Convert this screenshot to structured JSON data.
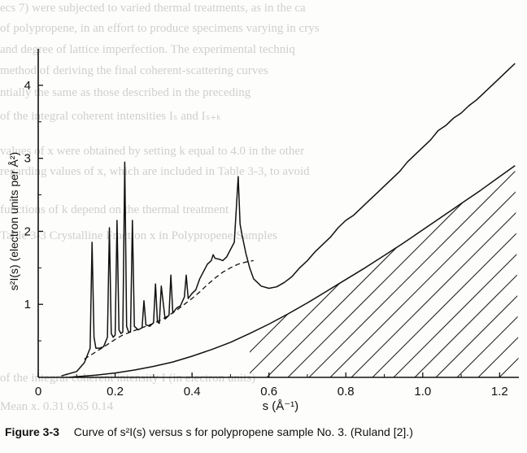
{
  "chart_data": {
    "type": "line",
    "xlabel": "s (Å⁻¹)",
    "ylabel": "s²I(s) (electron units per Å²)",
    "xlim": [
      0,
      1.25
    ],
    "ylim": [
      0,
      4.5
    ],
    "x_ticks": [
      "0",
      "0.2",
      "0.4",
      "0.6",
      "0.8",
      "1.0",
      "1.2"
    ],
    "y_ticks": [
      "1",
      "2",
      "3",
      "4"
    ],
    "hatched_region": "between lower curve and x-axis from s≈0.55 to 1.25",
    "series": [
      {
        "style": "solid",
        "x": [
          0.06,
          0.1,
          0.12,
          0.135,
          0.14,
          0.145,
          0.15,
          0.16,
          0.17,
          0.18,
          0.185,
          0.19,
          0.195,
          0.2,
          0.205,
          0.21,
          0.215,
          0.22,
          0.225,
          0.23,
          0.235,
          0.24,
          0.245,
          0.25,
          0.26,
          0.27,
          0.275,
          0.28,
          0.29,
          0.3,
          0.305,
          0.31,
          0.315,
          0.32,
          0.33,
          0.34,
          0.345,
          0.35,
          0.36,
          0.37,
          0.38,
          0.385,
          0.39,
          0.4,
          0.41,
          0.42,
          0.43,
          0.44,
          0.45,
          0.455,
          0.46,
          0.47,
          0.48,
          0.49,
          0.5,
          0.51,
          0.515,
          0.52,
          0.525,
          0.53,
          0.54,
          0.55,
          0.56,
          0.58,
          0.6,
          0.62,
          0.64,
          0.66,
          0.68,
          0.7,
          0.72,
          0.74,
          0.76,
          0.78,
          0.8,
          0.82,
          0.84,
          0.86,
          0.88,
          0.9,
          0.92,
          0.94,
          0.96,
          0.98,
          1.0,
          1.02,
          1.04,
          1.06,
          1.08,
          1.1,
          1.12,
          1.14,
          1.16,
          1.18,
          1.2,
          1.22,
          1.24
        ],
        "y": [
          0.02,
          0.08,
          0.2,
          0.4,
          1.85,
          0.55,
          0.4,
          0.4,
          0.42,
          0.55,
          2.05,
          0.6,
          0.55,
          0.58,
          2.15,
          0.65,
          0.6,
          0.62,
          2.95,
          0.7,
          0.62,
          0.62,
          2.15,
          0.7,
          0.65,
          0.68,
          1.05,
          0.72,
          0.7,
          0.75,
          1.28,
          0.76,
          0.74,
          1.25,
          0.8,
          0.85,
          1.4,
          0.88,
          0.95,
          0.98,
          1.1,
          1.4,
          1.08,
          1.15,
          1.2,
          1.35,
          1.45,
          1.55,
          1.6,
          1.68,
          1.63,
          1.62,
          1.6,
          1.65,
          1.75,
          1.85,
          2.3,
          2.75,
          2.1,
          1.95,
          1.7,
          1.5,
          1.35,
          1.25,
          1.22,
          1.24,
          1.3,
          1.38,
          1.5,
          1.6,
          1.72,
          1.82,
          1.92,
          2.05,
          2.15,
          2.22,
          2.32,
          2.42,
          2.52,
          2.62,
          2.72,
          2.82,
          2.95,
          3.05,
          3.15,
          3.25,
          3.38,
          3.45,
          3.55,
          3.62,
          3.72,
          3.8,
          3.9,
          4.0,
          4.1,
          4.2,
          4.3
        ]
      },
      {
        "style": "dashed",
        "x": [
          0.12,
          0.15,
          0.18,
          0.2,
          0.22,
          0.24,
          0.26,
          0.28,
          0.3,
          0.32,
          0.34,
          0.36,
          0.38,
          0.4,
          0.42,
          0.44,
          0.46,
          0.48,
          0.5,
          0.52,
          0.54,
          0.56
        ],
        "y": [
          0.25,
          0.35,
          0.45,
          0.52,
          0.58,
          0.62,
          0.66,
          0.7,
          0.74,
          0.79,
          0.85,
          0.92,
          1.0,
          1.08,
          1.17,
          1.27,
          1.36,
          1.44,
          1.5,
          1.55,
          1.58,
          1.6
        ]
      },
      {
        "style": "solid",
        "x": [
          0.08,
          0.1,
          0.15,
          0.2,
          0.25,
          0.3,
          0.35,
          0.4,
          0.45,
          0.5,
          0.55,
          0.6,
          0.65,
          0.7,
          0.75,
          0.8,
          0.85,
          0.9,
          0.95,
          1.0,
          1.05,
          1.1,
          1.15,
          1.2,
          1.24
        ],
        "y": [
          0.0,
          0.01,
          0.03,
          0.06,
          0.1,
          0.15,
          0.21,
          0.29,
          0.38,
          0.48,
          0.6,
          0.73,
          0.87,
          1.02,
          1.18,
          1.34,
          1.5,
          1.67,
          1.84,
          2.02,
          2.2,
          2.38,
          2.56,
          2.75,
          2.9
        ]
      }
    ]
  },
  "caption": {
    "figure_number": "Figure 3-3",
    "text": "Curve of s²I(s) versus s for polypropene sample No. 3. (Ruland [2].)"
  },
  "show_through": [
    "ecs 7) were subjected to varied thermal treatments, as in the ca",
    "of polypropene, in an effort to produce specimens varying in crys",
    "and degree of lattice imperfection. The experimental techniq",
    "method of deriving the final coherent-scattering curves",
    "ntially the same as those described in the preceding",
    "of the integral coherent intensities  Iₛ and  Iₛ₊ₖ",
    "values of  x  were obtained by setting  k  equal to 4.0 in the other",
    "regarding values of  x, which are included in Table 3-3, to avoid",
    "functions of  k  depend on the thermal treatment",
    "Mean  x.        0.31            0.65             0.14",
    "Table 3-3   Crystalline Fraction x in Polypropene Samples",
    "of the integral coherent intensity  I (in electron units)"
  ]
}
